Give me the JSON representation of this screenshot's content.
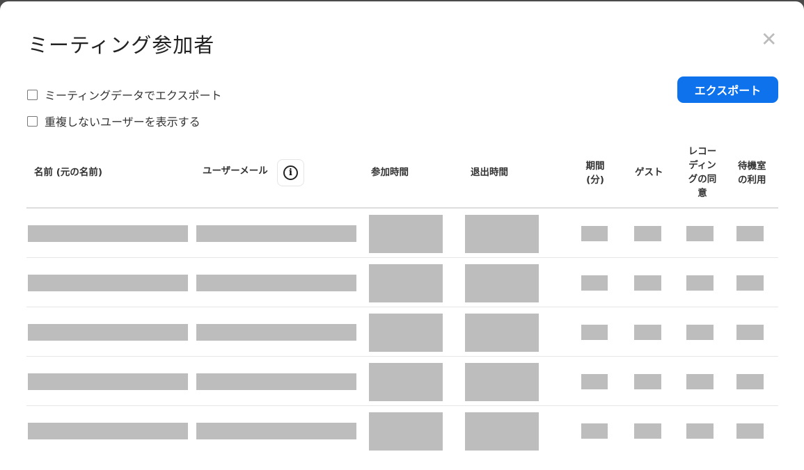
{
  "dialog": {
    "title": "ミーティング参加者",
    "close_icon": "close-icon",
    "options": [
      {
        "label": "ミーティングデータでエクスポート",
        "checked": false
      },
      {
        "label": "重複しないユーザーを表示する",
        "checked": false
      }
    ],
    "export_label": "エクスポート",
    "accent_color": "#0e72ed"
  },
  "table": {
    "columns": [
      "名前 (元の名前)",
      "ユーザーメール",
      "参加時間",
      "退出時間",
      "期間\n(分)",
      "ゲスト",
      "レコーディングの同意",
      "待機室の利用"
    ],
    "rows_redacted": 5
  }
}
